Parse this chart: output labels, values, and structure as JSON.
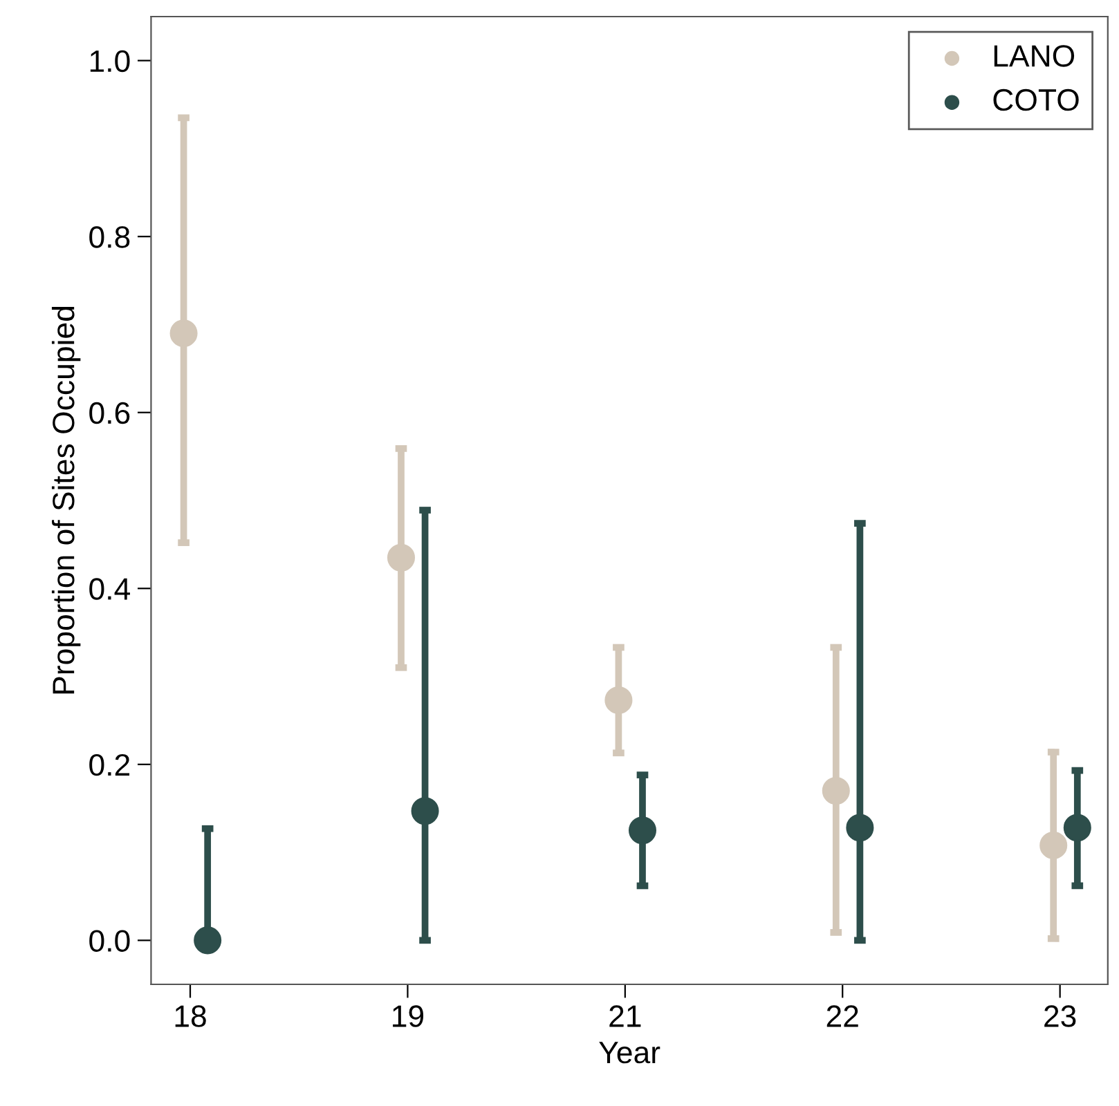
{
  "chart_data": {
    "type": "scatter",
    "xlabel": "Year",
    "ylabel": "Proportion of Sites Occupied",
    "categories": [
      "18",
      "19",
      "21",
      "22",
      "23"
    ],
    "series": [
      {
        "name": "LANO",
        "color": "#d3c7b8",
        "values": [
          0.69,
          0.435,
          0.273,
          0.17,
          0.108
        ],
        "errors": [
          [
            0.452,
            0.935
          ],
          [
            0.31,
            0.559
          ],
          [
            0.213,
            0.333
          ],
          [
            0.009,
            0.333
          ],
          [
            0.002,
            0.214
          ]
        ]
      },
      {
        "name": "COTO",
        "color": "#2d4e4b",
        "values": [
          0.0,
          0.147,
          0.125,
          0.128,
          0.128
        ],
        "errors": [
          [
            0.0,
            0.127
          ],
          [
            0.0,
            0.489
          ],
          [
            0.062,
            0.188
          ],
          [
            0.0,
            0.474
          ],
          [
            0.062,
            0.193
          ]
        ]
      }
    ],
    "ylim": [
      -0.05,
      1.05
    ],
    "yticks": [
      {
        "value": 0,
        "label": "0.0"
      },
      {
        "value": 0.2,
        "label": "0.2"
      },
      {
        "value": 0.4,
        "label": "0.4"
      },
      {
        "value": 0.6,
        "label": "0.6"
      },
      {
        "value": 0.8,
        "label": "0.8"
      },
      {
        "value": 1,
        "label": "1.0"
      }
    ],
    "grid": false,
    "legend": "top right",
    "marker": "circle"
  }
}
